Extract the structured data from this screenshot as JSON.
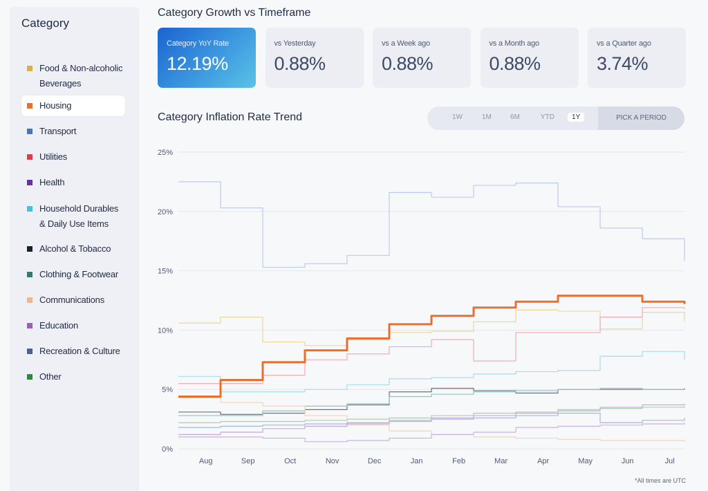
{
  "sidebar": {
    "title": "Category",
    "items": [
      {
        "label": "Food & Non-alcoholic Beverages",
        "color": "#d8b04a",
        "selected": false
      },
      {
        "label": "Housing",
        "color": "#e8702f",
        "selected": true
      },
      {
        "label": "Transport",
        "color": "#4a74b4",
        "selected": false
      },
      {
        "label": "Utilities",
        "color": "#e03a4e",
        "selected": false
      },
      {
        "label": "Health",
        "color": "#6a2fa0",
        "selected": false
      },
      {
        "label": "Household Durables & Daily Use Items",
        "color": "#4cc0d8",
        "selected": false
      },
      {
        "label": "Alcohol & Tobacco",
        "color": "#16222e",
        "selected": false
      },
      {
        "label": "Clothing & Footwear",
        "color": "#2e7d75",
        "selected": false
      },
      {
        "label": "Communications",
        "color": "#f2b48c",
        "selected": false
      },
      {
        "label": "Education",
        "color": "#9a5fb8",
        "selected": false
      },
      {
        "label": "Recreation & Culture",
        "color": "#4a6090",
        "selected": false
      },
      {
        "label": "Other",
        "color": "#2e8a3a",
        "selected": false
      }
    ]
  },
  "growth": {
    "title": "Category Growth vs Timeframe",
    "cards": [
      {
        "label": "Category YoY Rate",
        "value": "12.19%",
        "active": true
      },
      {
        "label": "vs Yesterday",
        "value": "0.88%",
        "active": false
      },
      {
        "label": "vs a Week ago",
        "value": "0.88%",
        "active": false
      },
      {
        "label": "vs a Month ago",
        "value": "0.88%",
        "active": false
      },
      {
        "label": "vs a Quarter ago",
        "value": "3.74%",
        "active": false
      }
    ]
  },
  "trend": {
    "title": "Category Inflation Rate Trend",
    "periods": [
      "1W",
      "1M",
      "6M",
      "YTD",
      "1Y"
    ],
    "selected_period": "1Y",
    "pick_label": "PICK A PERIOD"
  },
  "footnote": "*All times are UTC",
  "chart_data": {
    "type": "line",
    "x": [
      "Jul",
      "Aug",
      "Sep",
      "Oct",
      "Nov",
      "Dec",
      "Jan",
      "Feb",
      "Mar",
      "Apr",
      "May",
      "Jun",
      "Jul"
    ],
    "xticks": [
      "Aug",
      "Sep",
      "Oct",
      "Nov",
      "Dec",
      "Jan",
      "Feb",
      "Mar",
      "Apr",
      "May",
      "Jun",
      "Jul"
    ],
    "yticks": [
      "0%",
      "5%",
      "10%",
      "15%",
      "20%",
      "25%"
    ],
    "ylim": [
      0,
      25
    ],
    "grid": true,
    "series": [
      {
        "name": "Housing",
        "color": "#e8702f",
        "emphasis": true,
        "values": [
          4.4,
          5.8,
          7.3,
          8.3,
          9.3,
          10.5,
          11.2,
          11.9,
          12.4,
          12.9,
          12.9,
          12.4,
          12.2
        ]
      },
      {
        "name": "Transport",
        "color": "#b9cbee",
        "values": [
          22.5,
          20.3,
          15.3,
          15.6,
          16.3,
          21.6,
          21.2,
          22.2,
          22.4,
          20.4,
          18.6,
          17.7,
          15.8
        ]
      },
      {
        "name": "Food & Non-alcoholic Beverages",
        "color": "#e9d89a",
        "values": [
          10.6,
          11.1,
          9.0,
          8.7,
          9.2,
          9.8,
          9.9,
          10.7,
          11.7,
          11.6,
          10.1,
          11.5,
          10.7
        ]
      },
      {
        "name": "Utilities",
        "color": "#f3aab2",
        "values": [
          5.5,
          5.5,
          6.2,
          7.5,
          8.0,
          8.6,
          9.2,
          7.4,
          9.8,
          9.8,
          11.1,
          11.9,
          11.8
        ]
      },
      {
        "name": "Household Durables & Daily Use Items",
        "color": "#a9dbe8",
        "values": [
          6.1,
          4.8,
          4.8,
          5.0,
          5.4,
          5.9,
          6.0,
          6.3,
          6.5,
          6.6,
          7.8,
          8.2,
          7.5
        ]
      },
      {
        "name": "Alcohol & Tobacco",
        "color": "#6b7280",
        "values": [
          3.1,
          2.9,
          3.0,
          3.3,
          3.7,
          4.8,
          5.1,
          4.9,
          4.7,
          5.0,
          5.0,
          5.0,
          5.1
        ]
      },
      {
        "name": "Clothing & Footwear",
        "color": "#8fc3bc",
        "values": [
          2.8,
          2.8,
          3.2,
          3.6,
          3.8,
          4.4,
          4.6,
          4.8,
          4.9,
          5.0,
          5.1,
          5.0,
          5.0
        ]
      },
      {
        "name": "Communications",
        "color": "#f6d2b8",
        "values": [
          4.3,
          3.9,
          3.6,
          2.8,
          2.0,
          1.5,
          1.2,
          1.0,
          0.9,
          0.8,
          0.7,
          0.7,
          0.6
        ]
      },
      {
        "name": "Education",
        "color": "#c9a6d9",
        "values": [
          1.2,
          1.4,
          1.7,
          1.9,
          2.1,
          2.4,
          2.6,
          2.8,
          3.0,
          3.2,
          3.5,
          3.7,
          3.8
        ]
      },
      {
        "name": "Recreation & Culture",
        "color": "#a7b6d4",
        "values": [
          1.8,
          1.9,
          2.0,
          2.1,
          2.2,
          2.3,
          2.5,
          2.6,
          2.8,
          3.0,
          2.2,
          2.4,
          2.6
        ]
      },
      {
        "name": "Health",
        "color": "#c7b3e3",
        "values": [
          1.0,
          1.0,
          0.9,
          0.6,
          0.7,
          0.9,
          1.2,
          1.4,
          1.8,
          1.9,
          2.0,
          2.1,
          2.2
        ]
      },
      {
        "name": "Other",
        "color": "#a8cfb0",
        "values": [
          2.2,
          2.3,
          2.3,
          2.4,
          2.5,
          2.6,
          2.8,
          3.0,
          3.1,
          3.3,
          3.4,
          3.5,
          3.6
        ]
      }
    ]
  }
}
